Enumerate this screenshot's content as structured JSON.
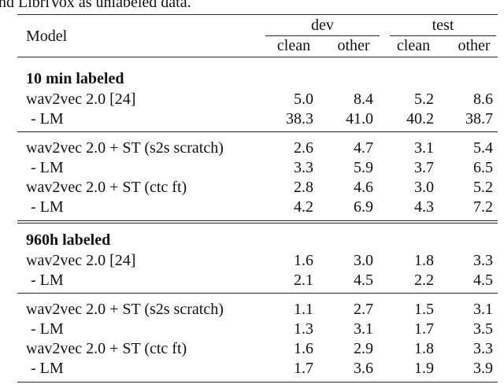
{
  "caption_fragment": "nd LibriVox as unlabeled data.",
  "table": {
    "header": {
      "model": "Model",
      "groups": [
        "dev",
        "test"
      ],
      "subcolumns": [
        "clean",
        "other",
        "clean",
        "other"
      ]
    },
    "sections": [
      {
        "title": "10 min labeled",
        "groups": [
          [
            [
              "wav2vec 2.0 [24]",
              "5.0",
              "8.4",
              "5.2",
              "8.6"
            ],
            [
              "- LM",
              "38.3",
              "41.0",
              "40.2",
              "38.7"
            ]
          ],
          [
            [
              "wav2vec 2.0 + ST (s2s scratch)",
              "2.6",
              "4.7",
              "3.1",
              "5.4"
            ],
            [
              "- LM",
              "3.3",
              "5.9",
              "3.7",
              "6.5"
            ],
            [
              "wav2vec 2.0 + ST (ctc ft)",
              "2.8",
              "4.6",
              "3.0",
              "5.2"
            ],
            [
              "- LM",
              "4.2",
              "6.9",
              "4.3",
              "7.2"
            ]
          ]
        ]
      },
      {
        "title": "960h labeled",
        "groups": [
          [
            [
              "wav2vec 2.0 [24]",
              "1.6",
              "3.0",
              "1.8",
              "3.3"
            ],
            [
              "- LM",
              "2.1",
              "4.5",
              "2.2",
              "4.5"
            ]
          ],
          [
            [
              "wav2vec 2.0 + ST (s2s scratch)",
              "1.1",
              "2.7",
              "1.5",
              "3.1"
            ],
            [
              "- LM",
              "1.3",
              "3.1",
              "1.7",
              "3.5"
            ],
            [
              "wav2vec 2.0 + ST (ctc ft)",
              "1.6",
              "2.9",
              "1.8",
              "3.3"
            ],
            [
              "- LM",
              "1.7",
              "3.6",
              "1.9",
              "3.9"
            ]
          ]
        ]
      }
    ]
  }
}
